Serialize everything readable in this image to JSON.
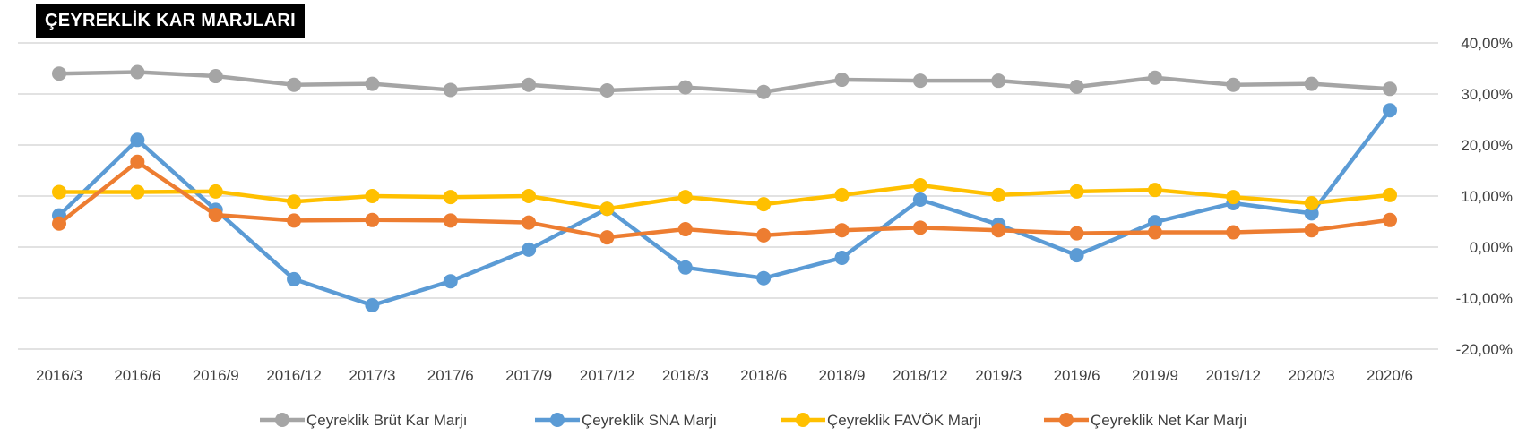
{
  "chart_data": {
    "type": "line",
    "title": "ÇEYREKLİK KAR MARJLARI",
    "categories": [
      "2016/3",
      "2016/6",
      "2016/9",
      "2016/12",
      "2017/3",
      "2017/6",
      "2017/9",
      "2017/12",
      "2018/3",
      "2018/6",
      "2018/9",
      "2018/12",
      "2019/3",
      "2019/6",
      "2019/9",
      "2019/12",
      "2020/3",
      "2020/6"
    ],
    "ylim": [
      -20,
      40
    ],
    "yticks": [
      "40,00%",
      "30,00%",
      "20,00%",
      "10,00%",
      "0,00%",
      "-10,00%",
      "-20,00%"
    ],
    "ytick_values": [
      40,
      30,
      20,
      10,
      0,
      -10,
      -20
    ],
    "y_axis_side": "right",
    "grid": true,
    "legend_position": "bottom",
    "series": [
      {
        "name": "Çeyreklik Brüt Kar Marjı",
        "color": "#A5A5A5",
        "values": [
          34.0,
          34.3,
          33.5,
          31.8,
          32.0,
          30.8,
          31.8,
          30.7,
          31.3,
          30.4,
          32.8,
          32.6,
          32.6,
          31.4,
          33.2,
          31.8,
          32.0,
          31.0
        ]
      },
      {
        "name": "Çeyreklik SNA Marjı",
        "color": "#5B9BD5",
        "values": [
          6.2,
          21.0,
          7.3,
          -6.3,
          -11.4,
          -6.7,
          -0.5,
          7.5,
          -4.0,
          -6.1,
          -2.1,
          9.3,
          4.4,
          -1.6,
          4.9,
          8.6,
          6.6,
          26.8
        ]
      },
      {
        "name": "Çeyreklik FAVÖK Marjı",
        "color": "#FFC000",
        "values": [
          10.8,
          10.8,
          10.9,
          8.9,
          10.0,
          9.8,
          10.0,
          7.5,
          9.8,
          8.4,
          10.2,
          12.1,
          10.2,
          10.9,
          11.2,
          9.8,
          8.6,
          10.2
        ]
      },
      {
        "name": "Çeyreklik Net Kar Marjı",
        "color": "#ED7D31",
        "values": [
          4.6,
          16.7,
          6.3,
          5.2,
          5.3,
          5.2,
          4.8,
          1.9,
          3.5,
          2.3,
          3.3,
          3.8,
          3.3,
          2.7,
          2.9,
          2.9,
          3.3,
          5.3
        ]
      }
    ]
  }
}
